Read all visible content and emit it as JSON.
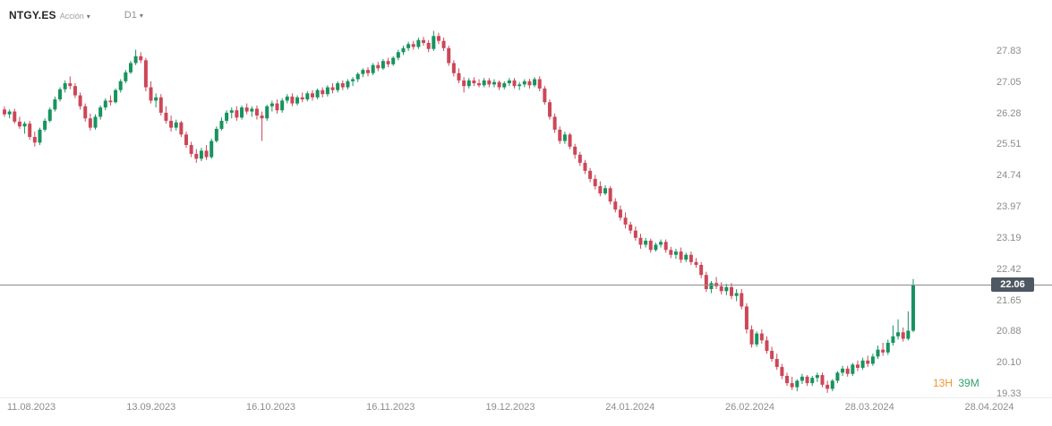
{
  "header": {
    "symbol": "NTGY.ES",
    "instrument_type": "Acción",
    "timeframe": "D1"
  },
  "price_line": {
    "value": 22.06,
    "label": "22.06"
  },
  "countdown": {
    "hours": "13H",
    "minutes": "39M"
  },
  "colors": {
    "up": "#17935f",
    "down": "#cc4758",
    "price_line": "#8a8a8a",
    "badge_bg": "#4e5863",
    "axis_text": "#8c8c8c"
  },
  "chart_data": {
    "type": "candlestick",
    "title": "NTGY.ES Acción D1",
    "ylim": [
      19.29,
      28.78
    ],
    "y_ticks": [
      27.83,
      27.05,
      26.28,
      25.51,
      24.74,
      23.97,
      23.19,
      22.42,
      21.65,
      20.88,
      20.1,
      19.33
    ],
    "x_labels": [
      "11.08.2023",
      "13.09.2023",
      "16.10.2023",
      "16.11.2023",
      "19.12.2023",
      "24.01.2024",
      "26.02.2024",
      "28.03.2024",
      "28.04.2024"
    ],
    "current_price": 22.06,
    "candles": [
      [
        26.4,
        26.48,
        26.22,
        26.28
      ],
      [
        26.28,
        26.4,
        26.18,
        26.35
      ],
      [
        26.35,
        26.42,
        26.05,
        26.1
      ],
      [
        26.1,
        26.22,
        25.92,
        25.98
      ],
      [
        25.98,
        26.1,
        25.8,
        26.05
      ],
      [
        26.05,
        26.12,
        25.65,
        25.72
      ],
      [
        25.72,
        25.85,
        25.48,
        25.58
      ],
      [
        25.58,
        25.95,
        25.52,
        25.9
      ],
      [
        25.9,
        26.18,
        25.85,
        26.12
      ],
      [
        26.12,
        26.45,
        26.08,
        26.4
      ],
      [
        26.4,
        26.72,
        26.35,
        26.65
      ],
      [
        26.65,
        26.95,
        26.6,
        26.9
      ],
      [
        26.9,
        27.12,
        26.82,
        27.05
      ],
      [
        27.05,
        27.22,
        26.9,
        26.98
      ],
      [
        26.98,
        27.05,
        26.68,
        26.75
      ],
      [
        26.75,
        26.82,
        26.4,
        26.48
      ],
      [
        26.48,
        26.55,
        26.1,
        26.18
      ],
      [
        26.18,
        26.3,
        25.88,
        25.95
      ],
      [
        25.95,
        26.28,
        25.9,
        26.22
      ],
      [
        26.22,
        26.5,
        26.15,
        26.45
      ],
      [
        26.45,
        26.68,
        26.38,
        26.62
      ],
      [
        26.62,
        26.75,
        26.5,
        26.58
      ],
      [
        26.58,
        26.92,
        26.55,
        26.88
      ],
      [
        26.88,
        27.15,
        26.82,
        27.1
      ],
      [
        27.1,
        27.38,
        27.05,
        27.32
      ],
      [
        27.32,
        27.6,
        27.28,
        27.55
      ],
      [
        27.55,
        27.88,
        27.5,
        27.72
      ],
      [
        27.72,
        27.82,
        27.55,
        27.62
      ],
      [
        27.62,
        27.68,
        26.85,
        26.95
      ],
      [
        26.95,
        27.1,
        26.55,
        26.62
      ],
      [
        26.62,
        26.8,
        26.45,
        26.7
      ],
      [
        26.7,
        26.78,
        26.25,
        26.32
      ],
      [
        26.32,
        26.48,
        26.05,
        26.12
      ],
      [
        26.12,
        26.25,
        25.85,
        25.95
      ],
      [
        25.95,
        26.15,
        25.88,
        26.08
      ],
      [
        26.08,
        26.12,
        25.72,
        25.78
      ],
      [
        25.78,
        25.85,
        25.45,
        25.52
      ],
      [
        25.52,
        25.6,
        25.22,
        25.3
      ],
      [
        25.3,
        25.42,
        25.08,
        25.18
      ],
      [
        25.18,
        25.45,
        25.12,
        25.38
      ],
      [
        25.38,
        25.52,
        25.15,
        25.22
      ],
      [
        25.22,
        25.68,
        25.18,
        25.62
      ],
      [
        25.62,
        25.98,
        25.58,
        25.92
      ],
      [
        25.92,
        26.2,
        25.88,
        26.12
      ],
      [
        26.12,
        26.38,
        26.05,
        26.32
      ],
      [
        26.32,
        26.45,
        26.18,
        26.38
      ],
      [
        26.38,
        26.48,
        26.12,
        26.2
      ],
      [
        26.2,
        26.5,
        26.15,
        26.45
      ],
      [
        26.45,
        26.55,
        26.28,
        26.35
      ],
      [
        26.35,
        26.48,
        26.22,
        26.42
      ],
      [
        26.42,
        26.5,
        26.15,
        26.25
      ],
      [
        26.25,
        26.35,
        25.62,
        26.18
      ],
      [
        26.18,
        26.52,
        26.12,
        26.48
      ],
      [
        26.48,
        26.62,
        26.35,
        26.55
      ],
      [
        26.55,
        26.65,
        26.3,
        26.38
      ],
      [
        26.38,
        26.68,
        26.32,
        26.62
      ],
      [
        26.62,
        26.78,
        26.55,
        26.72
      ],
      [
        26.72,
        26.8,
        26.48,
        26.55
      ],
      [
        26.55,
        26.75,
        26.5,
        26.7
      ],
      [
        26.7,
        26.82,
        26.58,
        26.65
      ],
      [
        26.65,
        26.85,
        26.6,
        26.8
      ],
      [
        26.8,
        26.88,
        26.62,
        26.7
      ],
      [
        26.7,
        26.92,
        26.65,
        26.88
      ],
      [
        26.88,
        26.95,
        26.7,
        26.78
      ],
      [
        26.78,
        27.0,
        26.72,
        26.95
      ],
      [
        26.95,
        27.05,
        26.8,
        26.88
      ],
      [
        26.88,
        27.1,
        26.82,
        27.05
      ],
      [
        27.05,
        27.12,
        26.88,
        26.95
      ],
      [
        26.95,
        27.15,
        26.9,
        27.1
      ],
      [
        27.1,
        27.2,
        26.98,
        27.15
      ],
      [
        27.15,
        27.32,
        27.08,
        27.28
      ],
      [
        27.28,
        27.42,
        27.2,
        27.38
      ],
      [
        27.38,
        27.45,
        27.22,
        27.3
      ],
      [
        27.3,
        27.55,
        27.25,
        27.5
      ],
      [
        27.5,
        27.58,
        27.35,
        27.42
      ],
      [
        27.42,
        27.65,
        27.38,
        27.6
      ],
      [
        27.6,
        27.68,
        27.45,
        27.52
      ],
      [
        27.52,
        27.72,
        27.48,
        27.68
      ],
      [
        27.68,
        27.88,
        27.62,
        27.82
      ],
      [
        27.82,
        27.98,
        27.75,
        27.92
      ],
      [
        27.92,
        28.08,
        27.85,
        28.02
      ],
      [
        28.02,
        28.1,
        27.88,
        27.95
      ],
      [
        27.95,
        28.18,
        27.9,
        28.12
      ],
      [
        28.12,
        28.2,
        27.98,
        28.05
      ],
      [
        28.05,
        28.12,
        27.82,
        27.9
      ],
      [
        27.9,
        28.35,
        27.85,
        28.22
      ],
      [
        28.22,
        28.3,
        28.02,
        28.1
      ],
      [
        28.1,
        28.18,
        27.85,
        27.92
      ],
      [
        27.92,
        27.98,
        27.48,
        27.55
      ],
      [
        27.55,
        27.62,
        27.22,
        27.3
      ],
      [
        27.3,
        27.42,
        27.05,
        27.12
      ],
      [
        27.12,
        27.2,
        26.82,
        26.98
      ],
      [
        26.98,
        27.18,
        26.92,
        27.12
      ],
      [
        27.12,
        27.2,
        26.98,
        27.05
      ],
      [
        27.05,
        27.15,
        26.95,
        27.0
      ],
      [
        27.0,
        27.18,
        26.95,
        27.12
      ],
      [
        27.12,
        27.18,
        26.95,
        27.02
      ],
      [
        27.02,
        27.15,
        26.95,
        27.08
      ],
      [
        27.08,
        27.12,
        26.88,
        26.95
      ],
      [
        26.95,
        27.1,
        26.9,
        27.05
      ],
      [
        27.05,
        27.18,
        26.98,
        27.12
      ],
      [
        27.12,
        27.18,
        26.92,
        26.98
      ],
      [
        26.98,
        27.08,
        26.88,
        27.02
      ],
      [
        27.02,
        27.15,
        26.95,
        27.1
      ],
      [
        27.1,
        27.16,
        26.92,
        27.0
      ],
      [
        27.0,
        27.2,
        26.95,
        27.15
      ],
      [
        27.15,
        27.22,
        26.85,
        26.92
      ],
      [
        26.92,
        26.98,
        26.52,
        26.58
      ],
      [
        26.58,
        26.65,
        26.15,
        26.22
      ],
      [
        26.22,
        26.3,
        25.82,
        25.9
      ],
      [
        25.9,
        25.98,
        25.55,
        25.62
      ],
      [
        25.62,
        25.85,
        25.55,
        25.78
      ],
      [
        25.78,
        25.82,
        25.42,
        25.48
      ],
      [
        25.48,
        25.55,
        25.18,
        25.28
      ],
      [
        25.28,
        25.35,
        25.0,
        25.08
      ],
      [
        25.08,
        25.15,
        24.8,
        24.88
      ],
      [
        24.88,
        24.95,
        24.6,
        24.68
      ],
      [
        24.68,
        24.78,
        24.42,
        24.5
      ],
      [
        24.5,
        24.62,
        24.25,
        24.32
      ],
      [
        24.32,
        24.52,
        24.28,
        24.45
      ],
      [
        24.45,
        24.5,
        24.05,
        24.12
      ],
      [
        24.12,
        24.2,
        23.85,
        23.92
      ],
      [
        23.92,
        24.02,
        23.65,
        23.72
      ],
      [
        23.72,
        23.85,
        23.45,
        23.55
      ],
      [
        23.55,
        23.62,
        23.32,
        23.4
      ],
      [
        23.4,
        23.5,
        23.15,
        23.22
      ],
      [
        23.22,
        23.32,
        22.95,
        23.05
      ],
      [
        23.05,
        23.22,
        22.98,
        23.15
      ],
      [
        23.15,
        23.2,
        22.85,
        22.92
      ],
      [
        22.92,
        23.1,
        22.88,
        23.05
      ],
      [
        23.05,
        23.18,
        22.98,
        23.12
      ],
      [
        23.12,
        23.18,
        22.85,
        22.92
      ],
      [
        22.92,
        23.0,
        22.72,
        22.8
      ],
      [
        22.8,
        22.95,
        22.7,
        22.88
      ],
      [
        22.88,
        22.98,
        22.6,
        22.68
      ],
      [
        22.68,
        22.85,
        22.62,
        22.8
      ],
      [
        22.8,
        22.88,
        22.55,
        22.62
      ],
      [
        22.62,
        22.72,
        22.48,
        22.55
      ],
      [
        22.55,
        22.62,
        22.22,
        22.3
      ],
      [
        22.3,
        22.38,
        21.88,
        21.95
      ],
      [
        21.95,
        22.15,
        21.85,
        22.1
      ],
      [
        22.1,
        22.25,
        21.95,
        22.02
      ],
      [
        22.02,
        22.12,
        21.82,
        21.9
      ],
      [
        21.9,
        22.08,
        21.8,
        22.0
      ],
      [
        22.0,
        22.1,
        21.7,
        21.78
      ],
      [
        21.78,
        21.95,
        21.65,
        21.85
      ],
      [
        21.85,
        21.95,
        21.45,
        21.52
      ],
      [
        21.52,
        21.6,
        20.85,
        20.95
      ],
      [
        20.95,
        21.05,
        20.5,
        20.58
      ],
      [
        20.58,
        20.9,
        20.52,
        20.85
      ],
      [
        20.85,
        20.95,
        20.6,
        20.68
      ],
      [
        20.68,
        20.78,
        20.35,
        20.42
      ],
      [
        20.42,
        20.52,
        20.15,
        20.22
      ],
      [
        20.22,
        20.35,
        19.95,
        20.02
      ],
      [
        20.02,
        20.1,
        19.72,
        19.8
      ],
      [
        19.8,
        19.88,
        19.55,
        19.62
      ],
      [
        19.62,
        19.78,
        19.45,
        19.52
      ],
      [
        19.52,
        19.72,
        19.42,
        19.68
      ],
      [
        19.68,
        19.85,
        19.6,
        19.78
      ],
      [
        19.78,
        19.82,
        19.55,
        19.62
      ],
      [
        19.62,
        19.8,
        19.55,
        19.75
      ],
      [
        19.75,
        19.88,
        19.65,
        19.82
      ],
      [
        19.82,
        19.88,
        19.52,
        19.58
      ],
      [
        19.58,
        19.68,
        19.38,
        19.48
      ],
      [
        19.48,
        19.72,
        19.42,
        19.68
      ],
      [
        19.68,
        19.92,
        19.62,
        19.88
      ],
      [
        19.88,
        20.05,
        19.8,
        19.98
      ],
      [
        19.98,
        20.05,
        19.78,
        19.85
      ],
      [
        19.85,
        20.12,
        19.8,
        20.08
      ],
      [
        20.08,
        20.18,
        19.92,
        20.0
      ],
      [
        20.0,
        20.25,
        19.95,
        20.18
      ],
      [
        20.18,
        20.3,
        20.02,
        20.1
      ],
      [
        20.1,
        20.35,
        20.05,
        20.28
      ],
      [
        20.28,
        20.55,
        20.22,
        20.45
      ],
      [
        20.45,
        20.62,
        20.3,
        20.38
      ],
      [
        20.38,
        20.7,
        20.32,
        20.62
      ],
      [
        20.62,
        21.05,
        20.55,
        20.78
      ],
      [
        20.78,
        21.2,
        20.7,
        20.88
      ],
      [
        20.88,
        21.0,
        20.65,
        20.72
      ],
      [
        20.72,
        21.4,
        20.68,
        20.92
      ],
      [
        20.92,
        22.2,
        20.88,
        22.06
      ]
    ]
  }
}
